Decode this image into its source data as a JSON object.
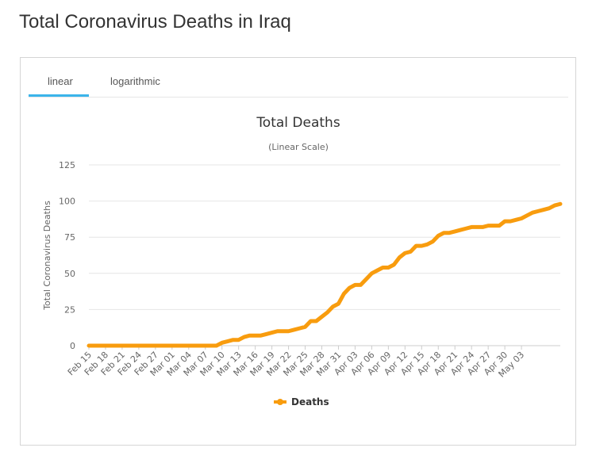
{
  "page": {
    "title": "Total Coronavirus Deaths in Iraq"
  },
  "tabs": [
    {
      "label": "linear",
      "active": true
    },
    {
      "label": "logarithmic",
      "active": false
    }
  ],
  "colors": {
    "series": "#f89c0e",
    "accent": "#3bb4ea",
    "grid": "#e6e6e6"
  },
  "chart_data": {
    "type": "line",
    "title": "Total Deaths",
    "subtitle": "(Linear Scale)",
    "ylabel": "Total Coronavirus Deaths",
    "xlabel": "",
    "ylim": [
      0,
      125
    ],
    "yticks": [
      0,
      25,
      50,
      75,
      100,
      125
    ],
    "x_tick_labels": [
      "Feb 15",
      "Feb 18",
      "Feb 21",
      "Feb 24",
      "Feb 27",
      "Mar 01",
      "Mar 04",
      "Mar 07",
      "Mar 10",
      "Mar 13",
      "Mar 16",
      "Mar 19",
      "Mar 22",
      "Mar 25",
      "Mar 28",
      "Mar 31",
      "Apr 03",
      "Apr 06",
      "Apr 09",
      "Apr 12",
      "Apr 15",
      "Apr 18",
      "Apr 21",
      "Apr 24",
      "Apr 27",
      "Apr 30",
      "May 03"
    ],
    "legend": {
      "label": "Deaths",
      "position": "bottom-center"
    },
    "series": [
      {
        "name": "Deaths",
        "values": [
          0,
          0,
          0,
          0,
          0,
          0,
          0,
          0,
          0,
          0,
          0,
          0,
          0,
          0,
          0,
          0,
          0,
          0,
          0,
          0,
          0,
          0,
          0,
          0,
          2,
          3,
          4,
          4,
          6,
          7,
          7,
          7,
          8,
          9,
          10,
          10,
          10,
          11,
          12,
          13,
          17,
          17,
          20,
          23,
          27,
          29,
          36,
          40,
          42,
          42,
          46,
          50,
          52,
          54,
          54,
          56,
          61,
          64,
          65,
          69,
          69,
          70,
          72,
          76,
          78,
          78,
          79,
          80,
          81,
          82,
          82,
          82,
          83,
          83,
          83,
          86,
          86,
          87,
          88,
          90,
          92,
          93,
          94,
          95,
          97,
          98
        ]
      }
    ]
  }
}
